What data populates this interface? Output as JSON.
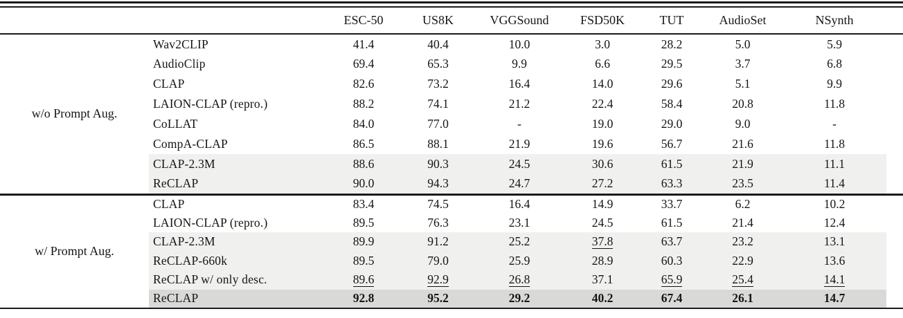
{
  "table": {
    "columns": [
      "ESC-50",
      "US8K",
      "VGGSound",
      "FSD50K",
      "TUT",
      "AudioSet",
      "NSynth"
    ],
    "sections": [
      {
        "group_label": "w/o Prompt Aug.",
        "rows": [
          {
            "model": "Wav2CLIP",
            "values": [
              "41.4",
              "40.4",
              "10.0",
              "3.0",
              "28.2",
              "5.0",
              "5.9"
            ],
            "shade": "none",
            "underline": [],
            "bold": false
          },
          {
            "model": "AudioClip",
            "values": [
              "69.4",
              "65.3",
              "9.9",
              "6.6",
              "29.5",
              "3.7",
              "6.8"
            ],
            "shade": "none",
            "underline": [],
            "bold": false
          },
          {
            "model": "CLAP",
            "values": [
              "82.6",
              "73.2",
              "16.4",
              "14.0",
              "29.6",
              "5.1",
              "9.9"
            ],
            "shade": "none",
            "underline": [],
            "bold": false
          },
          {
            "model": "LAION-CLAP (repro.)",
            "values": [
              "88.2",
              "74.1",
              "21.2",
              "22.4",
              "58.4",
              "20.8",
              "11.8"
            ],
            "shade": "none",
            "underline": [],
            "bold": false
          },
          {
            "model": "CoLLAT",
            "values": [
              "84.0",
              "77.0",
              "-",
              "19.0",
              "29.0",
              "9.0",
              "-"
            ],
            "shade": "none",
            "underline": [],
            "bold": false
          },
          {
            "model": "CompA-CLAP",
            "values": [
              "86.5",
              "88.1",
              "21.9",
              "19.6",
              "56.7",
              "21.6",
              "11.8"
            ],
            "shade": "none",
            "underline": [],
            "bold": false
          },
          {
            "model": "CLAP-2.3M",
            "values": [
              "88.6",
              "90.3",
              "24.5",
              "30.6",
              "61.5",
              "21.9",
              "11.1"
            ],
            "shade": "light",
            "underline": [],
            "bold": false
          },
          {
            "model": "ReCLAP",
            "values": [
              "90.0",
              "94.3",
              "24.7",
              "27.2",
              "63.3",
              "23.5",
              "11.4"
            ],
            "shade": "light",
            "underline": [],
            "bold": false
          }
        ]
      },
      {
        "group_label": "w/ Prompt Aug.",
        "rows": [
          {
            "model": "CLAP",
            "values": [
              "83.4",
              "74.5",
              "16.4",
              "14.9",
              "33.7",
              "6.2",
              "10.2"
            ],
            "shade": "none",
            "underline": [],
            "bold": false
          },
          {
            "model": "LAION-CLAP (repro.)",
            "values": [
              "89.5",
              "76.3",
              "23.1",
              "24.5",
              "61.5",
              "21.4",
              "12.4"
            ],
            "shade": "none",
            "underline": [],
            "bold": false
          },
          {
            "model": "CLAP-2.3M",
            "values": [
              "89.9",
              "91.2",
              "25.2",
              "37.8",
              "63.7",
              "23.2",
              "13.1"
            ],
            "shade": "light",
            "underline": [
              3
            ],
            "bold": false
          },
          {
            "model": "ReCLAP-660k",
            "values": [
              "89.5",
              "79.0",
              "25.9",
              "28.9",
              "60.3",
              "22.9",
              "13.6"
            ],
            "shade": "light",
            "underline": [],
            "bold": false
          },
          {
            "model": "ReCLAP w/ only desc.",
            "values": [
              "89.6",
              "92.9",
              "26.8",
              "37.1",
              "65.9",
              "25.4",
              "14.1"
            ],
            "shade": "light",
            "underline": [
              0,
              1,
              2,
              4,
              5,
              6
            ],
            "bold": false
          },
          {
            "model": "ReCLAP",
            "values": [
              "92.8",
              "95.2",
              "29.2",
              "40.2",
              "67.4",
              "26.1",
              "14.7"
            ],
            "shade": "dark",
            "underline": [],
            "bold": true
          }
        ]
      }
    ]
  }
}
